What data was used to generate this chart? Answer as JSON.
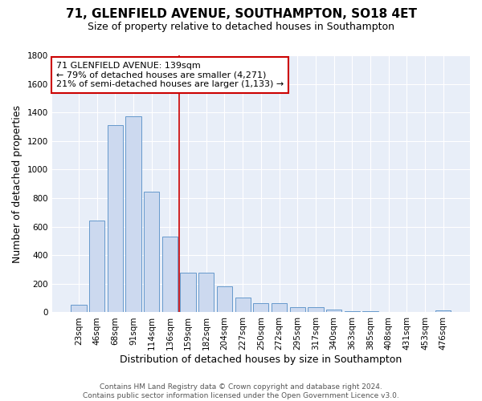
{
  "title_line1": "71, GLENFIELD AVENUE, SOUTHAMPTON, SO18 4ET",
  "title_line2": "Size of property relative to detached houses in Southampton",
  "xlabel": "Distribution of detached houses by size in Southampton",
  "ylabel": "Number of detached properties",
  "categories": [
    "23sqm",
    "46sqm",
    "68sqm",
    "91sqm",
    "114sqm",
    "136sqm",
    "159sqm",
    "182sqm",
    "204sqm",
    "227sqm",
    "250sqm",
    "272sqm",
    "295sqm",
    "317sqm",
    "340sqm",
    "363sqm",
    "385sqm",
    "408sqm",
    "431sqm",
    "453sqm",
    "476sqm"
  ],
  "values": [
    55,
    645,
    1310,
    1375,
    845,
    530,
    275,
    275,
    185,
    105,
    65,
    65,
    35,
    35,
    20,
    10,
    10,
    0,
    0,
    0,
    15
  ],
  "bar_color": "#ccd9ef",
  "bar_edge_color": "#6699cc",
  "vline_x_index": 5,
  "vline_color": "#cc0000",
  "annotation_line1": "71 GLENFIELD AVENUE: 139sqm",
  "annotation_line2": "← 79% of detached houses are smaller (4,271)",
  "annotation_line3": "21% of semi-detached houses are larger (1,133) →",
  "annotation_box_color": "#ffffff",
  "annotation_box_edge_color": "#cc0000",
  "ylim": [
    0,
    1800
  ],
  "yticks": [
    0,
    200,
    400,
    600,
    800,
    1000,
    1200,
    1400,
    1600,
    1800
  ],
  "background_color": "#e8eef8",
  "grid_color": "#ffffff",
  "footer_line1": "Contains HM Land Registry data © Crown copyright and database right 2024.",
  "footer_line2": "Contains public sector information licensed under the Open Government Licence v3.0.",
  "title_fontsize": 11,
  "subtitle_fontsize": 9,
  "axis_label_fontsize": 9,
  "tick_fontsize": 7.5,
  "annotation_fontsize": 8,
  "footer_fontsize": 6.5
}
